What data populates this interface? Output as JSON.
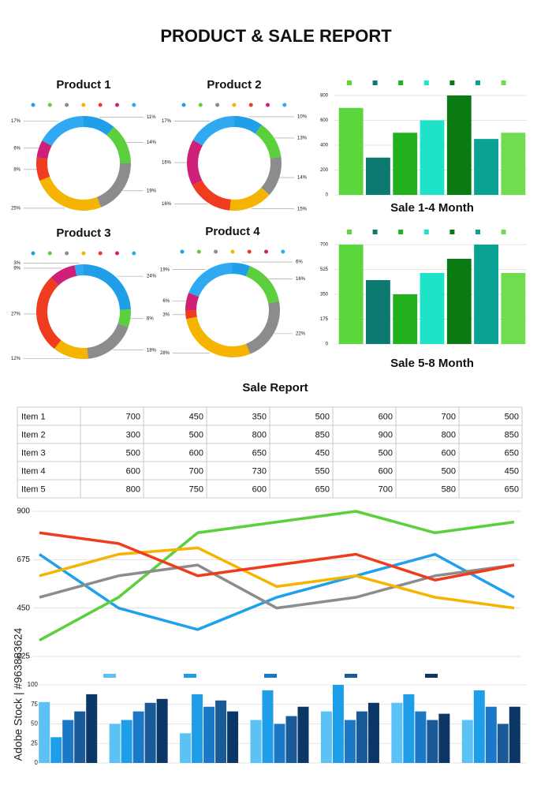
{
  "header": {
    "title": "PRODUCT & SALE REPORT"
  },
  "watermark": "Adobe Stock | #963883624",
  "chart_data": [
    {
      "type": "pie",
      "title": "Product 1",
      "values": [
        11,
        14,
        19,
        25,
        8,
        6,
        17
      ],
      "value_labels": [
        "11%",
        "14%",
        "19%",
        "25%",
        "8%",
        "6%",
        "17%"
      ],
      "colors": [
        "#1e9fe8",
        "#5ccf3c",
        "#8c8c8c",
        "#f5b400",
        "#f03c1e",
        "#cf2079",
        "#2ea9f2"
      ]
    },
    {
      "type": "pie",
      "title": "Product 2",
      "values": [
        10,
        13,
        14,
        15,
        16,
        16,
        17
      ],
      "value_labels": [
        "10%",
        "13%",
        "14%",
        "15%",
        "16%",
        "16%",
        "17%"
      ],
      "colors": [
        "#1e9fe8",
        "#5ccf3c",
        "#8c8c8c",
        "#f5b400",
        "#f03c1e",
        "#cf2079",
        "#2ea9f2"
      ]
    },
    {
      "type": "pie",
      "title": "Product 3",
      "values": [
        24,
        6,
        18,
        12,
        27,
        9,
        3
      ],
      "value_labels": [
        "24%",
        "6%",
        "18%",
        "12%",
        "27%",
        "9%",
        "3%"
      ],
      "colors": [
        "#1e9fe8",
        "#5ccf3c",
        "#8c8c8c",
        "#f5b400",
        "#f03c1e",
        "#cf2079",
        "#2ea9f2"
      ]
    },
    {
      "type": "pie",
      "title": "Product 4",
      "values": [
        6,
        16,
        22,
        28,
        3,
        6,
        19
      ],
      "value_labels": [
        "6%",
        "16%",
        "22%",
        "28%",
        "3%",
        "6%",
        "19%"
      ],
      "colors": [
        "#1e9fe8",
        "#5ccf3c",
        "#8c8c8c",
        "#f5b400",
        "#f03c1e",
        "#cf2079",
        "#2ea9f2"
      ]
    },
    {
      "type": "bar",
      "title": "Sale 1-4 Month",
      "values": [
        700,
        300,
        500,
        600,
        800,
        450,
        500
      ],
      "colors": [
        "#5bd63c",
        "#0c7a70",
        "#22b01e",
        "#1fe3c8",
        "#0a7a12",
        "#0aa294",
        "#70dc50"
      ],
      "ylim": [
        0,
        800
      ],
      "yticks": [
        0,
        200,
        400,
        600,
        800
      ],
      "grid": true
    },
    {
      "type": "bar",
      "title": "Sale 5-8 Month",
      "values": [
        700,
        450,
        350,
        500,
        600,
        700,
        500
      ],
      "colors": [
        "#5bd63c",
        "#0c7a70",
        "#22b01e",
        "#1fe3c8",
        "#0a7a12",
        "#0aa294",
        "#70dc50"
      ],
      "ylim": [
        0,
        700
      ],
      "yticks": [
        0,
        175,
        350,
        525,
        700
      ],
      "grid": true
    },
    {
      "type": "line",
      "ylim": [
        225,
        900
      ],
      "yticks": [
        225,
        450,
        675,
        900
      ],
      "grid": true,
      "series": [
        {
          "color": "#1ea0ec",
          "values": [
            700,
            450,
            350,
            500,
            600,
            700,
            500
          ]
        },
        {
          "color": "#5ccf3c",
          "values": [
            300,
            500,
            800,
            850,
            900,
            800,
            850
          ]
        },
        {
          "color": "#8c8c8c",
          "values": [
            500,
            600,
            650,
            450,
            500,
            600,
            650
          ]
        },
        {
          "color": "#f5b400",
          "values": [
            600,
            700,
            730,
            550,
            600,
            500,
            450
          ]
        },
        {
          "color": "#f03c1e",
          "values": [
            800,
            750,
            600,
            650,
            700,
            580,
            650
          ]
        }
      ]
    },
    {
      "type": "groupedbar",
      "ylim": [
        0,
        100
      ],
      "yticks": [
        0,
        25,
        50,
        75,
        100
      ],
      "grid": true,
      "series": [
        {
          "color": "#5cc2f6",
          "values": [
            78,
            50,
            38,
            55,
            66,
            77,
            55
          ]
        },
        {
          "color": "#1e9ee8",
          "values": [
            33,
            55,
            88,
            93,
            100,
            88,
            93
          ]
        },
        {
          "color": "#1a78c6",
          "values": [
            55,
            66,
            72,
            50,
            55,
            66,
            72
          ]
        },
        {
          "color": "#1a5a98",
          "values": [
            66,
            77,
            80,
            60,
            66,
            55,
            50
          ]
        },
        {
          "color": "#0a3766",
          "values": [
            88,
            82,
            66,
            72,
            77,
            63,
            72
          ]
        }
      ]
    }
  ],
  "table": {
    "title": "Sale Report",
    "rows": [
      [
        "Item 1",
        700,
        450,
        350,
        500,
        600,
        700,
        500
      ],
      [
        "Item 2",
        300,
        500,
        800,
        850,
        900,
        800,
        850
      ],
      [
        "Item 3",
        500,
        600,
        650,
        450,
        500,
        600,
        650
      ],
      [
        "Item 4",
        600,
        700,
        730,
        550,
        600,
        500,
        450
      ],
      [
        "Item 5",
        800,
        750,
        600,
        650,
        700,
        580,
        650
      ]
    ]
  }
}
